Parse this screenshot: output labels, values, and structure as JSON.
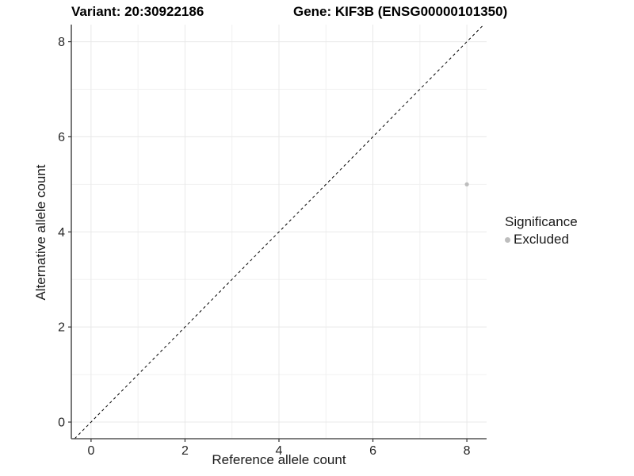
{
  "chart_data": {
    "type": "scatter",
    "title_variant": "Variant: 20:30922186",
    "title_gene": "Gene: KIF3B (ENSG00000101350)",
    "xlabel": "Reference allele count",
    "ylabel": "Alternative allele count",
    "xlim": [
      -0.42,
      8.42
    ],
    "ylim": [
      -0.35,
      8.36
    ],
    "xticks": [
      0,
      2,
      4,
      6,
      8
    ],
    "yticks": [
      0,
      2,
      4,
      6,
      8
    ],
    "xticks_minor": [
      1,
      3,
      5,
      7
    ],
    "yticks_minor": [
      1,
      3,
      5,
      7
    ],
    "grid": true,
    "identity_line": {
      "type": "dashed",
      "color": "#000000",
      "slope": 1,
      "intercept": 0
    },
    "series": [
      {
        "name": "Excluded",
        "color": "#bdbdbd",
        "points": [
          {
            "x": 8,
            "y": 5
          }
        ]
      }
    ],
    "legend": {
      "title": "Significance",
      "position": "right",
      "items": [
        {
          "label": "Excluded",
          "color": "#bdbdbd"
        }
      ]
    },
    "colors": {
      "grid_major": "#e8e8e8",
      "grid_minor": "#f1f1f1",
      "axis_line": "#555555",
      "tick_mark": "#333333",
      "tick_label": "#262626",
      "point": "#bdbdbd"
    }
  }
}
